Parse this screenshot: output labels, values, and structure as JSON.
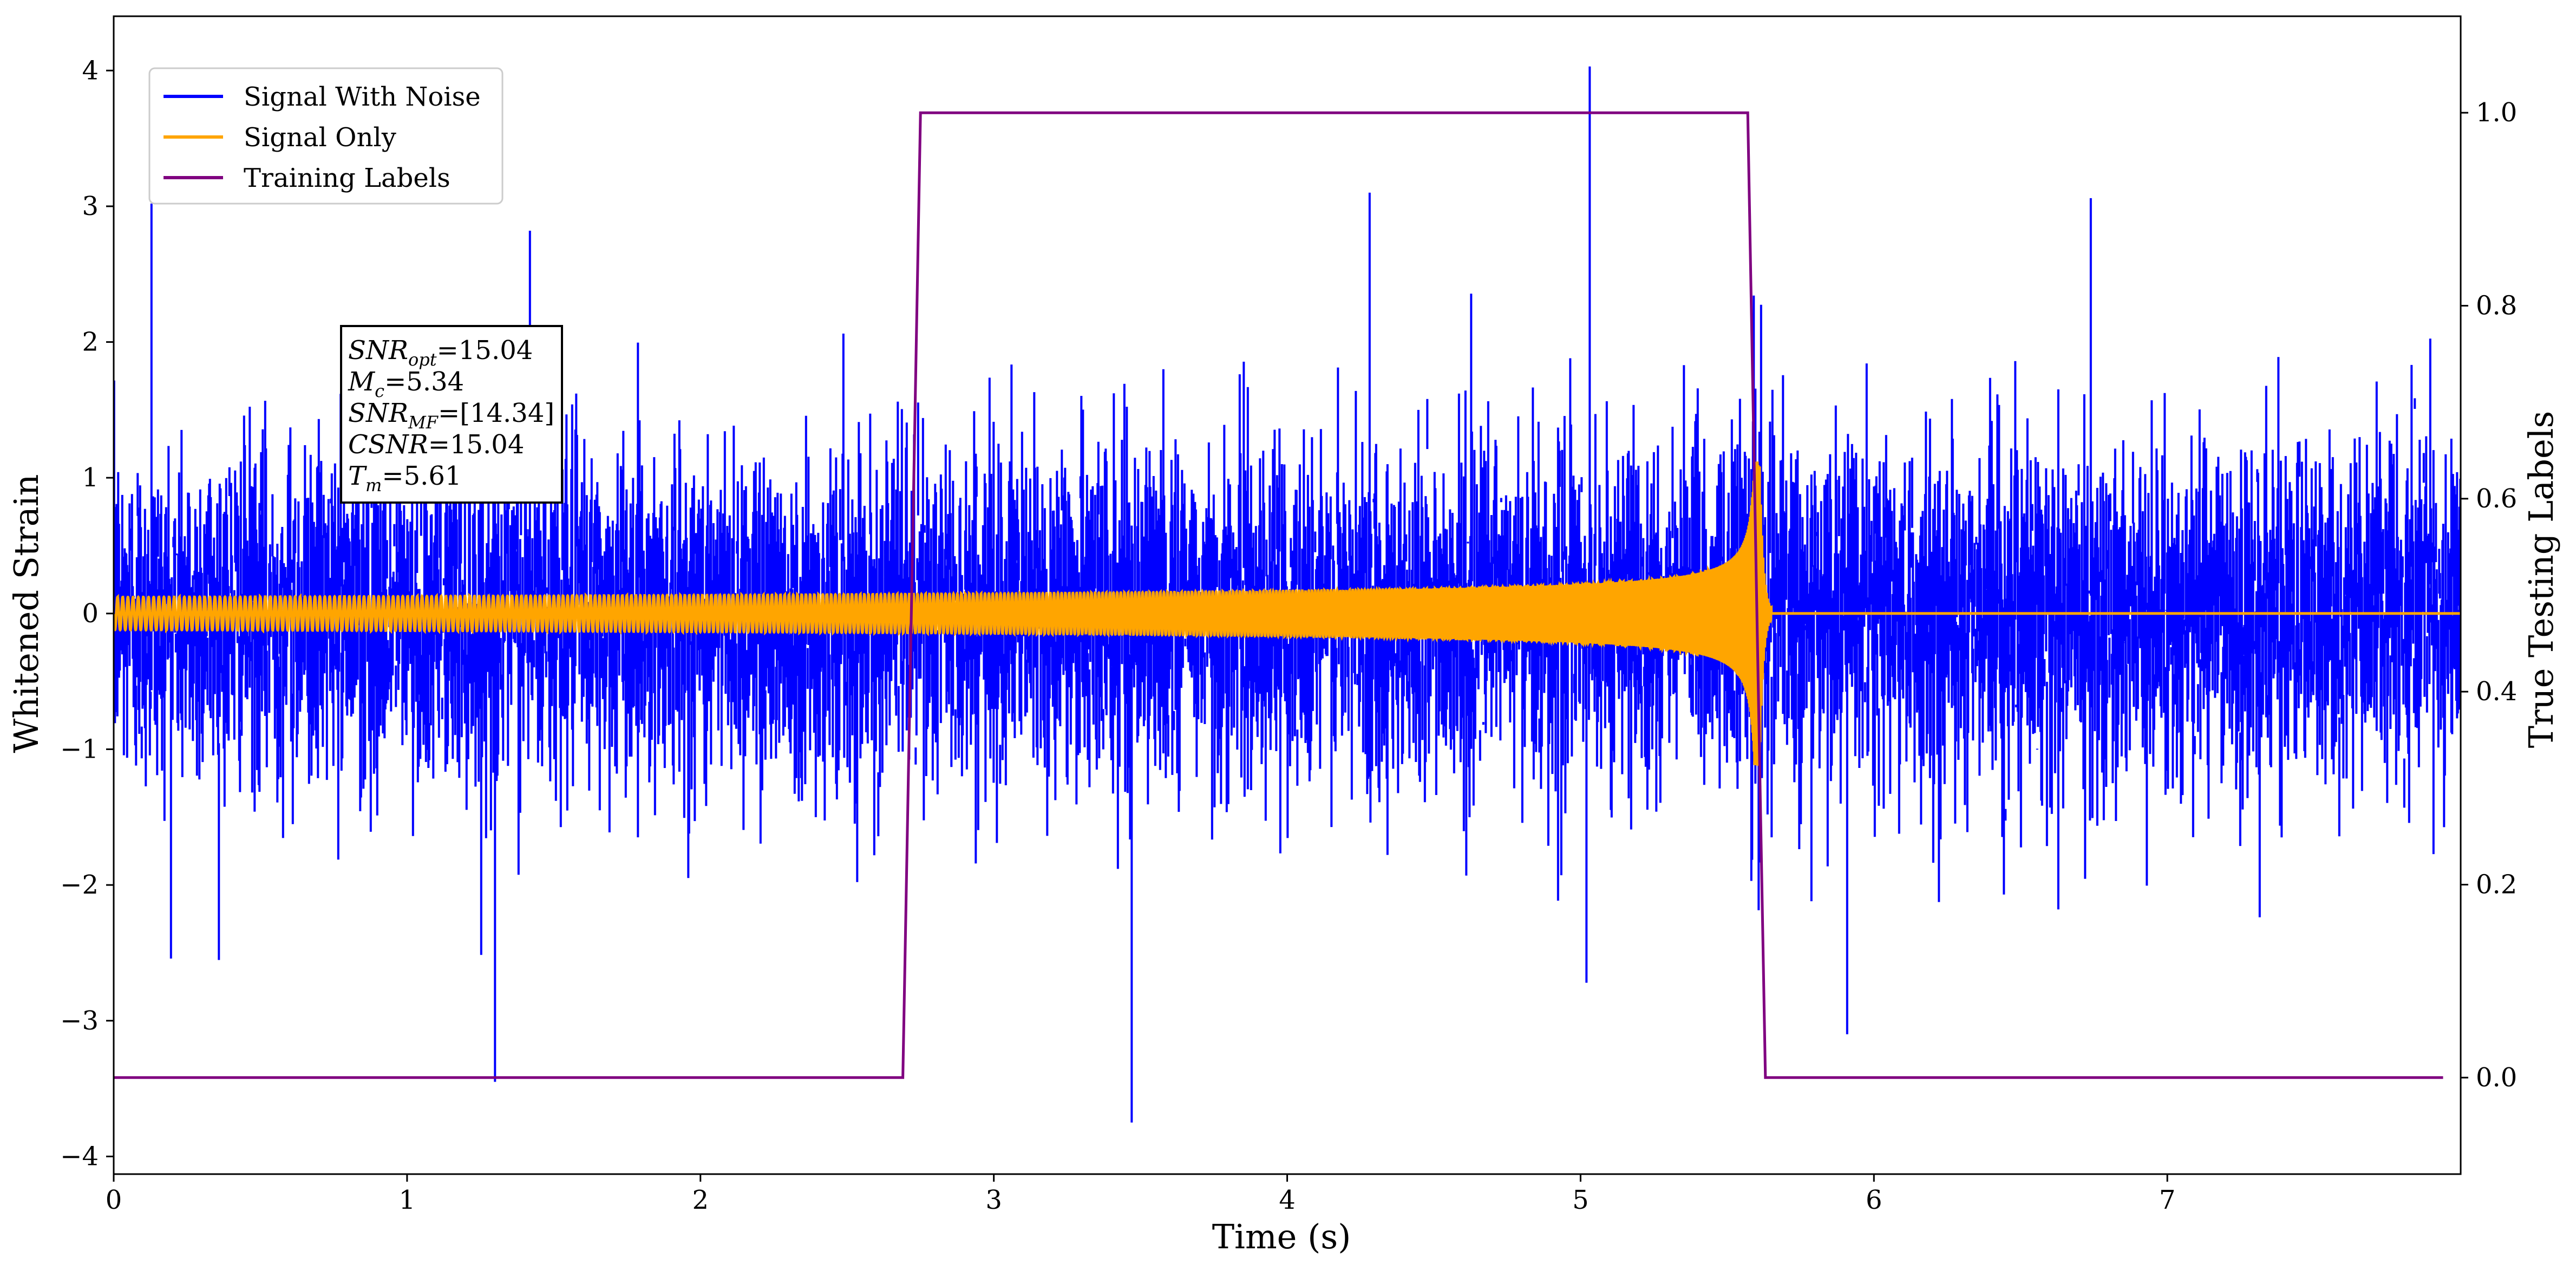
{
  "chart_data": {
    "type": "line",
    "xlabel": "Time (s)",
    "ylabel_left": "Whitened Strain",
    "ylabel_right": "True Testing Labels",
    "xlim": [
      0,
      8.0
    ],
    "ylim_left": [
      -4.13,
      4.4
    ],
    "ylim_right": [
      -0.1,
      1.1
    ],
    "x_ticks": [
      0,
      1,
      2,
      3,
      4,
      5,
      6,
      7
    ],
    "x_tick_labels": [
      "0",
      "1",
      "2",
      "3",
      "4",
      "5",
      "6",
      "7"
    ],
    "y_left_ticks": [
      -4,
      -3,
      -2,
      -1,
      0,
      1,
      2,
      3,
      4
    ],
    "y_left_tick_labels": [
      "−4",
      "−3",
      "−2",
      "−1",
      "0",
      "1",
      "2",
      "3",
      "4"
    ],
    "y_right_ticks": [
      0.0,
      0.2,
      0.4,
      0.6,
      0.8,
      1.0
    ],
    "y_right_tick_labels": [
      "0.0",
      "0.2",
      "0.4",
      "0.6",
      "0.8",
      "1.0"
    ],
    "grid": false,
    "legend_position": "top-left",
    "series": [
      {
        "name": "Signal With Noise",
        "axis": "left",
        "color": "#0000ff",
        "kind": "gaussian noise",
        "duration": 8.0,
        "std": 0.62,
        "notable_peaks": [
          {
            "t": 0.13,
            "v": 3.02
          },
          {
            "t": 1.3,
            "v": -3.45
          },
          {
            "t": 1.42,
            "v": 2.82
          },
          {
            "t": 3.47,
            "v": -3.75
          },
          {
            "t": 4.28,
            "v": 3.1
          },
          {
            "t": 5.03,
            "v": 4.03
          },
          {
            "t": 5.02,
            "v": -2.72
          },
          {
            "t": 6.74,
            "v": 3.06
          },
          {
            "t": 5.91,
            "v": -3.1
          }
        ]
      },
      {
        "name": "Signal Only",
        "axis": "left",
        "color": "#ffa500",
        "kind": "chirp",
        "amp_start": 0.12,
        "amp_peak": 1.12,
        "merger_time": 5.61,
        "ringdown_end": 5.65,
        "post_value": 0.0
      },
      {
        "name": "Training Labels",
        "axis": "right",
        "color": "#800080",
        "x": [
          0.0,
          2.69,
          2.75,
          5.57,
          5.63,
          7.94
        ],
        "y": [
          0.0,
          0.0,
          1.0,
          1.0,
          0.0,
          0.0
        ]
      }
    ],
    "annotation": {
      "lines": [
        {
          "base": "SNR",
          "sub": "opt",
          "text": "=15.04"
        },
        {
          "base": "M",
          "sub": "c",
          "text": "=5.34"
        },
        {
          "base": "SNR",
          "sub": "MF",
          "text": "=[14.34]"
        },
        {
          "base": "CSNR",
          "sub": "",
          "text": "=15.04"
        },
        {
          "base": "T",
          "sub": "m",
          "text": "=5.61"
        }
      ]
    }
  }
}
